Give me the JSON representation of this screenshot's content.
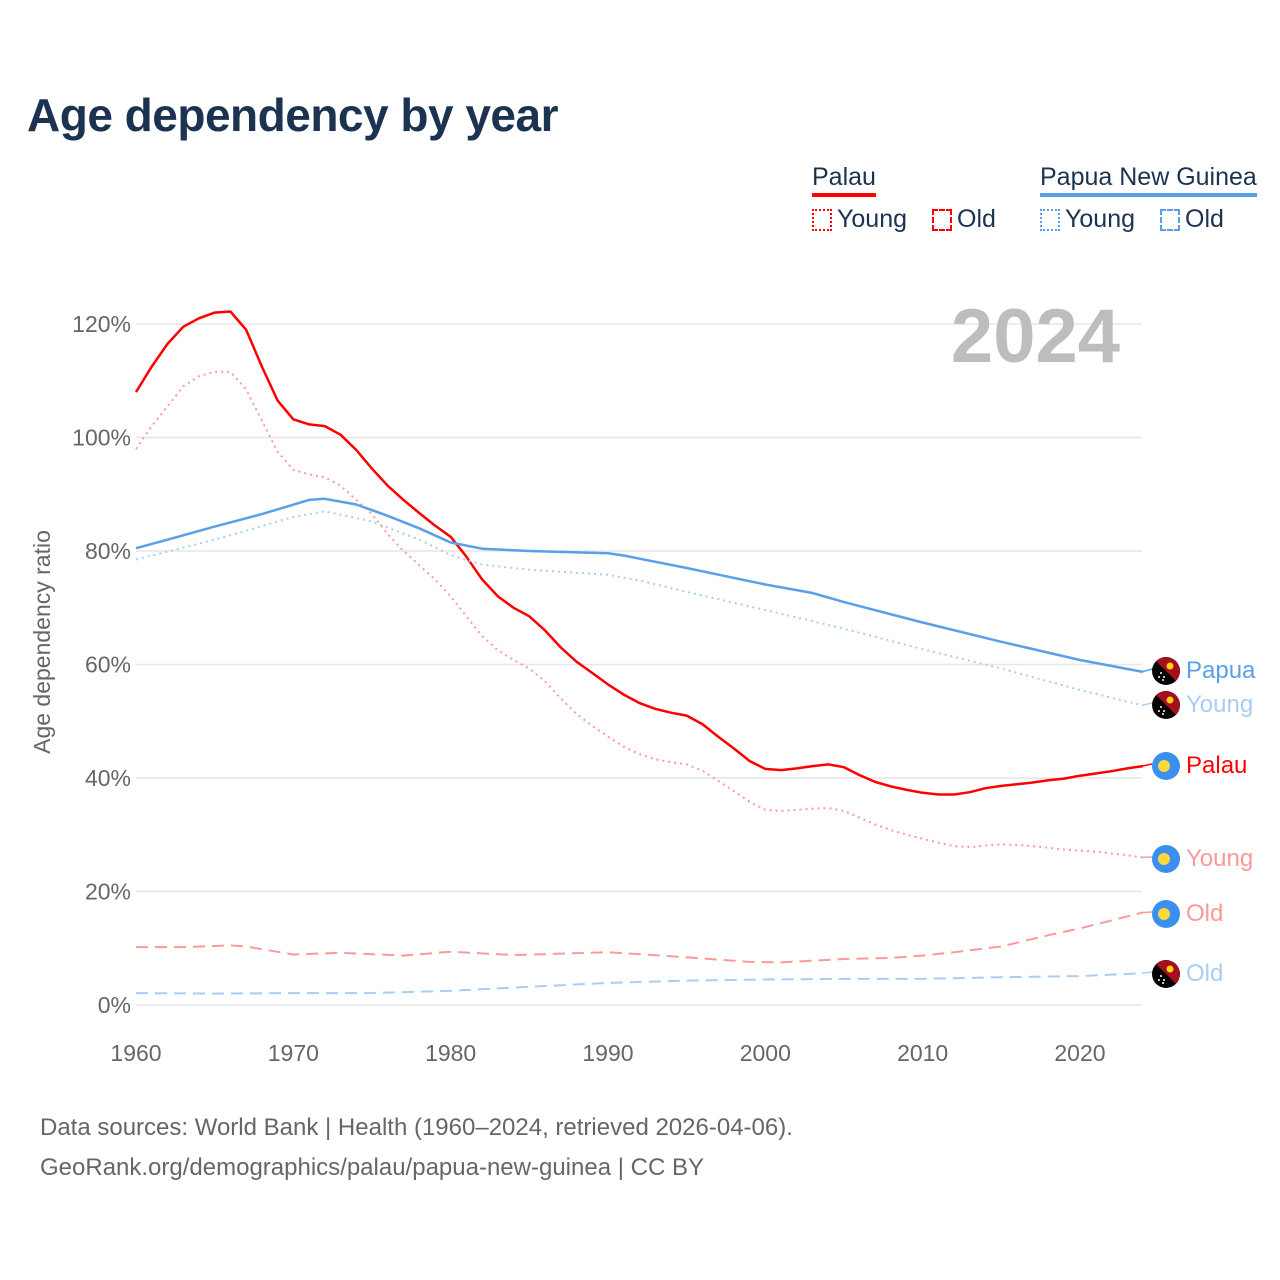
{
  "title": "Age dependency by year",
  "legend": {
    "groups": [
      {
        "name": "Palau",
        "color": "#ff0000",
        "items": [
          "Young",
          "Old"
        ]
      },
      {
        "name": "Papua New Guinea",
        "color": "#5aa0e8",
        "items": [
          "Young",
          "Old"
        ]
      }
    ]
  },
  "year_overlay": "2024",
  "source": {
    "line1": "Data sources: World Bank | Health (1960–2024, retrieved 2026-04-06).",
    "line2": "GeoRank.org/demographics/palau/papua-new-guinea | CC BY"
  },
  "chart_data": {
    "type": "line",
    "title": "Age dependency by year",
    "xlabel": "",
    "ylabel": "Age dependency ratio",
    "xlim": [
      1960,
      2024
    ],
    "ylim": [
      0,
      125
    ],
    "xticks": [
      "1960",
      "1970",
      "1980",
      "1990",
      "2000",
      "2010",
      "2020"
    ],
    "yticks": [
      "0%",
      "20%",
      "40%",
      "60%",
      "80%",
      "100%",
      "120%"
    ],
    "grid": true,
    "legend_position": "top-right",
    "series": [
      {
        "name": "Palau",
        "end_label": "Palau",
        "color": "#ff0000",
        "style": "solid",
        "flag": "palau",
        "x": [
          1960,
          1961,
          1962,
          1963,
          1964,
          1965,
          1966,
          1967,
          1968,
          1969,
          1970,
          1971,
          1972,
          1973,
          1974,
          1975,
          1976,
          1977,
          1978,
          1979,
          1980,
          1981,
          1982,
          1983,
          1984,
          1985,
          1986,
          1987,
          1988,
          1989,
          1990,
          1991,
          1992,
          1993,
          1994,
          1995,
          1996,
          1997,
          1998,
          1999,
          2000,
          2001,
          2002,
          2003,
          2004,
          2005,
          2006,
          2007,
          2008,
          2009,
          2010,
          2011,
          2012,
          2013,
          2014,
          2015,
          2016,
          2017,
          2018,
          2019,
          2020,
          2021,
          2022,
          2023,
          2024
        ],
        "y": [
          108,
          112.5,
          116.5,
          119.5,
          121,
          122,
          122.2,
          119,
          112.5,
          106.5,
          103.2,
          102.3,
          102,
          100.5,
          97.8,
          94.5,
          91.5,
          89,
          86.7,
          84.5,
          82.5,
          79,
          75,
          72,
          70,
          68.5,
          66,
          63,
          60.5,
          58.5,
          56.5,
          54.7,
          53.2,
          52.2,
          51.5,
          51,
          49.5,
          47.3,
          45.2,
          43,
          41.6,
          41.4,
          41.7,
          42.1,
          42.4,
          41.9,
          40.5,
          39.3,
          38.5,
          37.9,
          37.4,
          37.1,
          37.1,
          37.5,
          38.2,
          38.6,
          38.9,
          39.2,
          39.6,
          39.9,
          40.4,
          40.8,
          41.2,
          41.7,
          42.1
        ]
      },
      {
        "name": "Palau Young",
        "end_label": "Young",
        "color": "#ff9999",
        "style": "dotted",
        "flag": "palau",
        "x": [
          1960,
          1961,
          1962,
          1963,
          1964,
          1965,
          1966,
          1967,
          1968,
          1969,
          1970,
          1971,
          1972,
          1973,
          1974,
          1975,
          1976,
          1977,
          1978,
          1979,
          1980,
          1981,
          1982,
          1983,
          1984,
          1985,
          1986,
          1987,
          1988,
          1989,
          1990,
          1991,
          1992,
          1993,
          1994,
          1995,
          1996,
          1997,
          1998,
          1999,
          2000,
          2001,
          2002,
          2003,
          2004,
          2005,
          2006,
          2007,
          2008,
          2009,
          2010,
          2011,
          2012,
          2013,
          2014,
          2015,
          2016,
          2017,
          2018,
          2019,
          2020,
          2021,
          2022,
          2023,
          2024
        ],
        "y": [
          98,
          102,
          105.5,
          109,
          110.8,
          111.6,
          111.6,
          108.5,
          103,
          97.5,
          94.3,
          93.5,
          93,
          91.5,
          89,
          86.5,
          83,
          80,
          77.5,
          75,
          72,
          68.5,
          65,
          62.5,
          60.8,
          59.3,
          57,
          54,
          51.3,
          49.2,
          47.3,
          45.5,
          44.2,
          43.3,
          42.8,
          42.4,
          41.3,
          39.5,
          37.7,
          35.8,
          34.4,
          34.2,
          34.4,
          34.6,
          34.7,
          34.2,
          33,
          31.8,
          30.8,
          30,
          29.3,
          28.6,
          28,
          27.8,
          28.1,
          28.3,
          28.2,
          28,
          27.7,
          27.4,
          27.2,
          27,
          26.7,
          26.4,
          26
        ]
      },
      {
        "name": "Palau Old",
        "end_label": "Old",
        "color": "#ff9999",
        "style": "dashed",
        "flag": "palau",
        "x": [
          1960,
          1963,
          1966,
          1967,
          1970,
          1973,
          1977,
          1980,
          1984,
          1990,
          1994,
          1999,
          2001,
          2005,
          2008,
          2010,
          2012,
          2015,
          2018,
          2020,
          2024
        ],
        "y": [
          10.2,
          10.2,
          10.5,
          10.3,
          8.9,
          9.2,
          8.7,
          9.4,
          8.8,
          9.3,
          8.6,
          7.6,
          7.5,
          8.1,
          8.3,
          8.7,
          9.3,
          10.3,
          12.3,
          13.5,
          16.3
        ]
      },
      {
        "name": "Papua New Guinea",
        "end_label": "Papua",
        "color": "#5aa0e8",
        "style": "solid",
        "flag": "png",
        "x": [
          1960,
          1962,
          1965,
          1968,
          1971,
          1972,
          1974,
          1976,
          1978,
          1980,
          1982,
          1985,
          1990,
          1991,
          1995,
          2000,
          2003,
          2005,
          2010,
          2015,
          2020,
          2024
        ],
        "y": [
          80.5,
          82,
          84.3,
          86.5,
          89,
          89.2,
          88.2,
          86.2,
          84,
          81.5,
          80.4,
          80,
          79.6,
          79.2,
          77,
          74.1,
          72.6,
          71,
          67.4,
          64,
          60.8,
          58.7
        ]
      },
      {
        "name": "Papua New Guinea Young",
        "end_label": "Young",
        "color": "#a9cdf3",
        "style": "dotted",
        "flag": "png",
        "x": [
          1960,
          1965,
          1970,
          1972,
          1975,
          1978,
          1980,
          1982,
          1985,
          1990,
          1992,
          1995,
          2000,
          2005,
          2010,
          2015,
          2020,
          2024
        ],
        "y": [
          78.5,
          82,
          86,
          87,
          85.2,
          82,
          79.3,
          77.6,
          76.7,
          75.8,
          74.8,
          72.8,
          69.6,
          66.3,
          62.7,
          59.3,
          55.5,
          52.8
        ]
      },
      {
        "name": "Papua New Guinea Old",
        "end_label": "Old",
        "color": "#a9cdf3",
        "style": "dashed",
        "flag": "png",
        "x": [
          1960,
          1965,
          1970,
          1975,
          1980,
          1985,
          1990,
          1995,
          2000,
          2005,
          2010,
          2015,
          2020,
          2024
        ],
        "y": [
          2.1,
          2,
          2.1,
          2.1,
          2.5,
          3.2,
          3.9,
          4.3,
          4.5,
          4.6,
          4.6,
          4.9,
          5.1,
          5.6
        ]
      }
    ]
  }
}
